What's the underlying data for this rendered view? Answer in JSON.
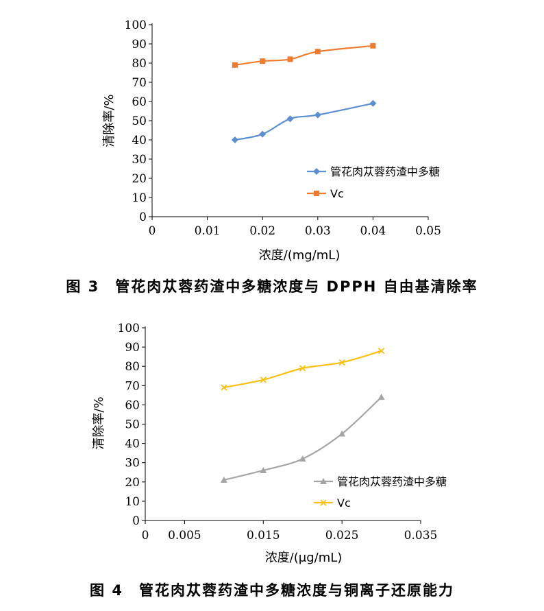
{
  "chart_data": [
    {
      "type": "line",
      "caption": "图 3　管花肉苁蓉药渣中多糖浓度与 DPPH 自由基清除率",
      "xlabel": "浓度/(mg/mL)",
      "ylabel": "清除率/%",
      "xlim": [
        0,
        0.05
      ],
      "ylim": [
        0,
        100
      ],
      "xticks": [
        "0",
        "0.01",
        "0.02",
        "0.03",
        "0.04",
        "0.05"
      ],
      "yticks": [
        "0",
        "10",
        "20",
        "30",
        "40",
        "50",
        "60",
        "70",
        "80",
        "90",
        "100"
      ],
      "series": [
        {
          "name": "管花肉苁蓉药渣中多糖",
          "color": "#5b8fd0",
          "marker": "diamond",
          "x": [
            0.015,
            0.02,
            0.025,
            0.03,
            0.04
          ],
          "values": [
            40,
            43,
            51,
            53,
            59
          ]
        },
        {
          "name": "Vc",
          "color": "#ee7b30",
          "marker": "square",
          "x": [
            0.015,
            0.02,
            0.025,
            0.03,
            0.04
          ],
          "values": [
            79,
            81,
            82,
            86,
            89
          ]
        }
      ]
    },
    {
      "type": "line",
      "caption": "图 4　管花肉苁蓉药渣中多糖浓度与铜离子还原能力",
      "xlabel": "浓度/(μg/mL)",
      "ylabel": "清除率/%",
      "xlim": [
        0,
        0.035
      ],
      "ylim": [
        0,
        100
      ],
      "xticks": [
        "0",
        "0.005",
        "0.015",
        "0.025",
        "0.035"
      ],
      "yticks": [
        "0",
        "10",
        "20",
        "30",
        "40",
        "50",
        "60",
        "70",
        "80",
        "90",
        "100"
      ],
      "series": [
        {
          "name": "管花肉苁蓉药渣中多糖",
          "color": "#a5a5a5",
          "marker": "triangle",
          "x": [
            0.01,
            0.015,
            0.02,
            0.025,
            0.03
          ],
          "values": [
            21,
            26,
            32,
            45,
            64
          ]
        },
        {
          "name": "Vc",
          "color": "#fbbf10",
          "marker": "x",
          "x": [
            0.01,
            0.015,
            0.02,
            0.025,
            0.03
          ],
          "values": [
            69,
            73,
            79,
            82,
            88
          ]
        }
      ]
    }
  ]
}
